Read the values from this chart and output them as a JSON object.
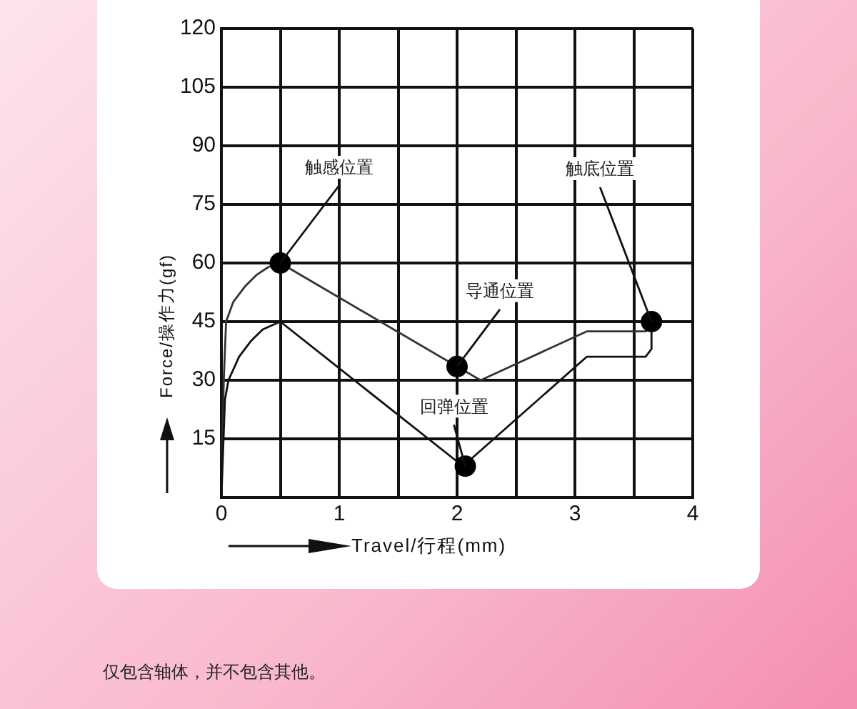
{
  "chart_data": {
    "type": "line",
    "xlabel": "Travel/行程(mm)",
    "ylabel": "Force/操作力(gf)",
    "xlim": [
      0,
      4
    ],
    "xticks": [
      0,
      {
        "value": 0.5,
        "label": null
      },
      1,
      {
        "value": 1.5,
        "label": null
      },
      2,
      {
        "value": 2.5,
        "label": null
      },
      3,
      {
        "value": 3.5,
        "label": null
      },
      4
    ],
    "ylim": [
      0,
      120
    ],
    "yticks": [
      {
        "value": 0,
        "label": null
      },
      15,
      30,
      45,
      60,
      75,
      90,
      105,
      120
    ],
    "grid": true,
    "legend": false,
    "series": [
      {
        "color": "#333333",
        "marker": "none",
        "x": [
          0,
          0.02,
          0.04,
          0.1,
          0.2,
          0.3,
          0.4,
          0.5,
          2,
          2.2,
          3.1,
          3.6,
          3.65,
          3.65
        ],
        "values": [
          0,
          30,
          45,
          50,
          54,
          57,
          59,
          60,
          33.5,
          30,
          42.5,
          42.5,
          43.5,
          45
        ]
      },
      {
        "color": "#111111",
        "marker": "none",
        "x": [
          0,
          0.03,
          0.06,
          0.15,
          0.25,
          0.35,
          0.5,
          2.05,
          3.1,
          3.6,
          3.65,
          3.65
        ],
        "values": [
          0,
          25,
          30,
          36,
          40,
          43,
          45,
          8,
          36,
          36,
          38,
          45
        ]
      },
      {
        "type": "scatter",
        "color": "#000000",
        "marker": "circle",
        "x": [
          0.5,
          2,
          2.07,
          3.65
        ],
        "values": [
          60,
          33.5,
          8,
          45
        ]
      }
    ],
    "annotations": [
      {
        "text": "触感位置",
        "x": 0.5,
        "y": 60
      },
      {
        "text": "导通位置",
        "x": 2,
        "y": 33.5
      },
      {
        "text": "回弹位置",
        "x": 2.07,
        "y": 8
      },
      {
        "text": "触底位置",
        "x": 3.65,
        "y": 45
      },
      "仅包含轴体，并不包含其他。"
    ]
  }
}
